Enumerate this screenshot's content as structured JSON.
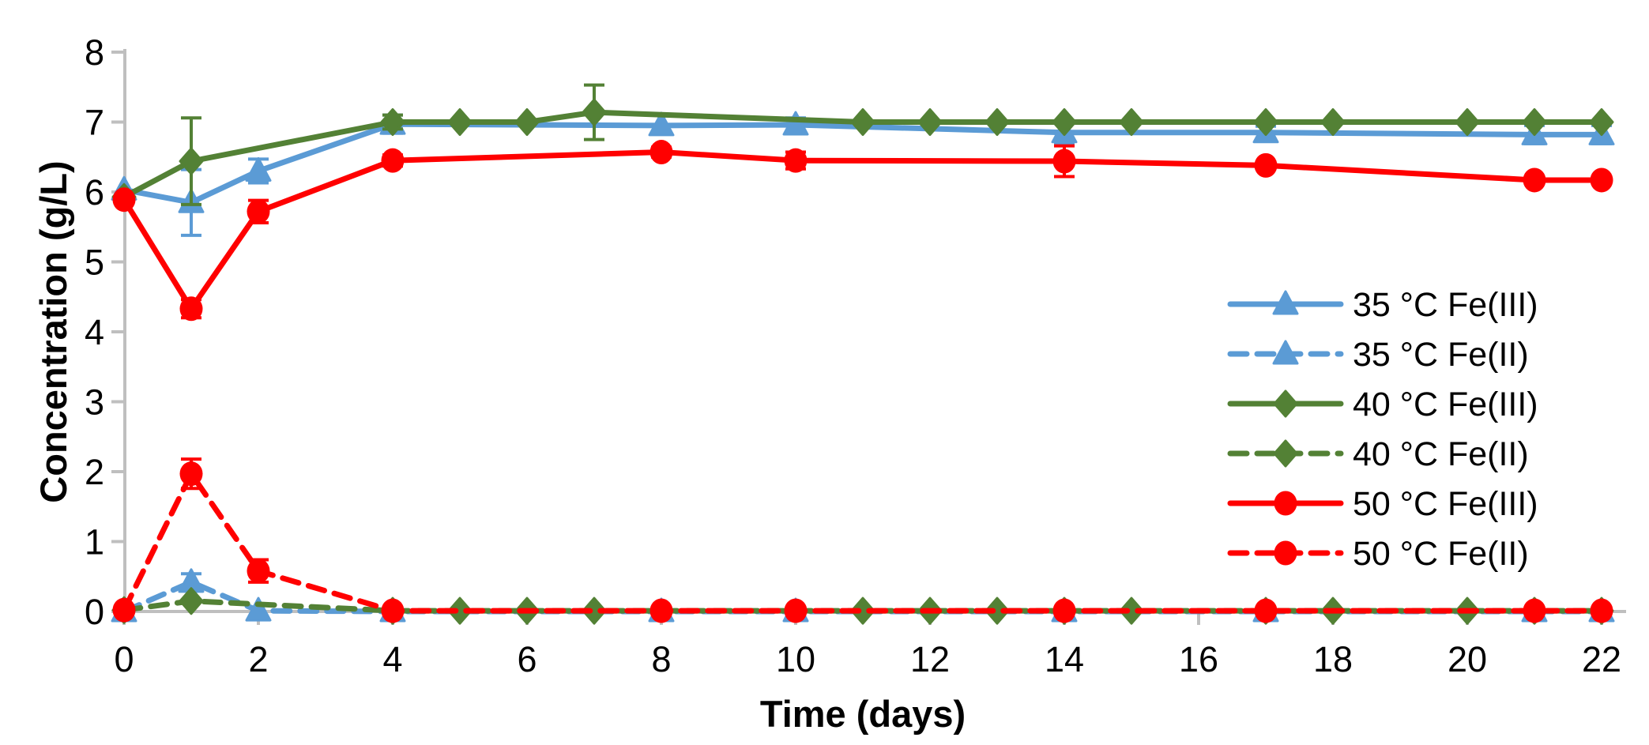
{
  "chart_data": {
    "type": "line",
    "title": "",
    "xlabel": "Time (days)",
    "ylabel": "Concentration (g/L)",
    "xlim": [
      0,
      22
    ],
    "ylim": [
      0,
      8
    ],
    "x_ticks": [
      0,
      2,
      4,
      6,
      8,
      10,
      12,
      14,
      16,
      18,
      20,
      22
    ],
    "y_ticks": [
      0,
      1,
      2,
      3,
      4,
      5,
      6,
      7,
      8
    ],
    "grid": false,
    "legend_position": "right-middle",
    "axis_color": "#BFBFBF",
    "series": [
      {
        "name": "35 °C Fe(III)",
        "color": "#5B9BD5",
        "line": "solid",
        "marker": "triangle",
        "points": [
          [
            0,
            6.03,
            0
          ],
          [
            1,
            5.85,
            0.47
          ],
          [
            2,
            6.3,
            0.17
          ],
          [
            4,
            6.97,
            0.13
          ],
          [
            8,
            6.95,
            0
          ],
          [
            10,
            6.96,
            0.1
          ],
          [
            14,
            6.85,
            0.17
          ],
          [
            17,
            6.85,
            0.09
          ],
          [
            21,
            6.82,
            0.13
          ],
          [
            22,
            6.82,
            0.13
          ]
        ]
      },
      {
        "name": "35 °C Fe(II)",
        "color": "#5B9BD5",
        "line": "dashed",
        "marker": "triangle",
        "points": [
          [
            0,
            0,
            0
          ],
          [
            1,
            0.42,
            0.12
          ],
          [
            2,
            0.01,
            0
          ],
          [
            4,
            0,
            0
          ],
          [
            8,
            0,
            0
          ],
          [
            10,
            0,
            0
          ],
          [
            14,
            0,
            0
          ],
          [
            17,
            0,
            0
          ],
          [
            21,
            0,
            0
          ],
          [
            22,
            0,
            0
          ]
        ]
      },
      {
        "name": "40 °C Fe(III)",
        "color": "#538135",
        "line": "solid",
        "marker": "diamond",
        "points": [
          [
            0,
            5.93,
            0
          ],
          [
            1,
            6.44,
            0.62
          ],
          [
            4,
            7.0,
            0.1
          ],
          [
            5,
            7.0,
            0
          ],
          [
            6,
            7.0,
            0
          ],
          [
            7,
            7.14,
            0.39
          ],
          [
            11,
            7.0,
            0
          ],
          [
            12,
            7.0,
            0
          ],
          [
            13,
            7.0,
            0
          ],
          [
            14,
            7.0,
            0
          ],
          [
            15,
            7.0,
            0
          ],
          [
            17,
            7.0,
            0
          ],
          [
            18,
            7.0,
            0
          ],
          [
            20,
            7.0,
            0
          ],
          [
            21,
            7.0,
            0
          ],
          [
            22,
            7.0,
            0
          ]
        ]
      },
      {
        "name": "40 °C Fe(II)",
        "color": "#538135",
        "line": "dashed",
        "marker": "diamond",
        "points": [
          [
            0,
            0.02,
            0
          ],
          [
            1,
            0.15,
            0
          ],
          [
            4,
            0.01,
            0
          ],
          [
            5,
            0.01,
            0
          ],
          [
            6,
            0.01,
            0
          ],
          [
            7,
            0.01,
            0
          ],
          [
            11,
            0.01,
            0
          ],
          [
            12,
            0.01,
            0
          ],
          [
            13,
            0.01,
            0
          ],
          [
            14,
            0.01,
            0
          ],
          [
            15,
            0.01,
            0
          ],
          [
            17,
            0.01,
            0
          ],
          [
            18,
            0.01,
            0
          ],
          [
            20,
            0.01,
            0
          ],
          [
            21,
            0.01,
            0
          ],
          [
            22,
            0.01,
            0
          ]
        ]
      },
      {
        "name": "50 °C Fe(III)",
        "color": "#FF0000",
        "line": "solid",
        "marker": "circle",
        "points": [
          [
            0,
            5.89,
            0
          ],
          [
            1,
            4.33,
            0.13
          ],
          [
            2,
            5.72,
            0.16
          ],
          [
            4,
            6.45,
            0.08
          ],
          [
            8,
            6.57,
            0.07
          ],
          [
            10,
            6.45,
            0.12
          ],
          [
            14,
            6.44,
            0.22
          ],
          [
            17,
            6.38,
            0
          ],
          [
            21,
            6.17,
            0
          ],
          [
            22,
            6.17,
            0
          ]
        ]
      },
      {
        "name": "50 °C Fe(II)",
        "color": "#FF0000",
        "line": "dashed",
        "marker": "circle",
        "points": [
          [
            0,
            0.02,
            0
          ],
          [
            1,
            1.97,
            0.21
          ],
          [
            2,
            0.58,
            0.16
          ],
          [
            4,
            0.01,
            0
          ],
          [
            8,
            0.01,
            0
          ],
          [
            10,
            0.01,
            0
          ],
          [
            14,
            0.01,
            0
          ],
          [
            17,
            0.01,
            0
          ],
          [
            21,
            0.01,
            0
          ],
          [
            22,
            0.01,
            0
          ]
        ]
      }
    ]
  }
}
